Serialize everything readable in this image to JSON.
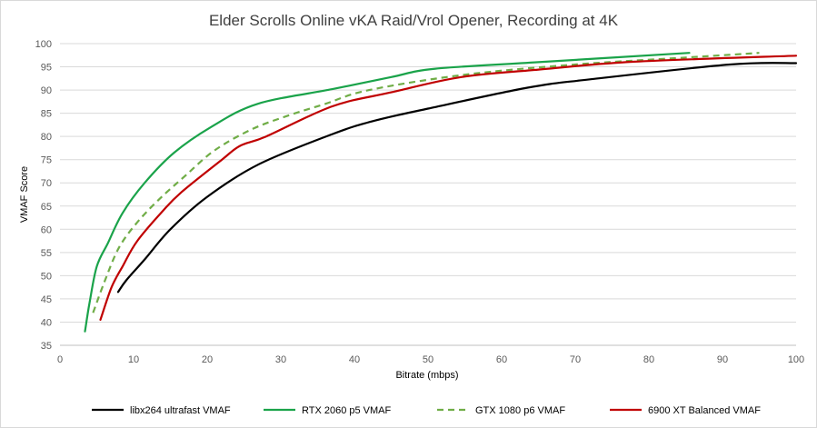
{
  "chart_data": {
    "type": "line",
    "title": "Elder Scrolls Online vKA Raid/Vrol Opener, Recording at 4K",
    "xlabel": "Bitrate (mbps)",
    "ylabel": "VMAF Score",
    "xlim": [
      0,
      100
    ],
    "ylim": [
      35,
      100
    ],
    "xticks": [
      "0",
      "10",
      "20",
      "30",
      "40",
      "50",
      "60",
      "70",
      "80",
      "90",
      "100"
    ],
    "yticks": [
      "35",
      "40",
      "45",
      "50",
      "55",
      "60",
      "65",
      "70",
      "75",
      "80",
      "85",
      "90",
      "95",
      "100"
    ],
    "grid": "horizontal",
    "legend_position": "bottom",
    "series": [
      {
        "name": "libx264 ultrafast VMAF",
        "color": "#000000",
        "dash": "solid",
        "points": [
          [
            7.9,
            46.5
          ],
          [
            9,
            49
          ],
          [
            11.5,
            53.5
          ],
          [
            15,
            60
          ],
          [
            20,
            67
          ],
          [
            27,
            74
          ],
          [
            37,
            80.5
          ],
          [
            42.5,
            83.3
          ],
          [
            50,
            86
          ],
          [
            63.5,
            90.5
          ],
          [
            72,
            92.3
          ],
          [
            91,
            95.5
          ],
          [
            100,
            95.8
          ]
        ]
      },
      {
        "name": "RTX 2060 p5 VMAF",
        "color": "#1aa34a",
        "dash": "solid",
        "points": [
          [
            3.4,
            38
          ],
          [
            4,
            44
          ],
          [
            5,
            52
          ],
          [
            6.5,
            57
          ],
          [
            8.5,
            63.5
          ],
          [
            11.5,
            70
          ],
          [
            15.5,
            76.5
          ],
          [
            20.5,
            82
          ],
          [
            26.8,
            87
          ],
          [
            37,
            90.2
          ],
          [
            45,
            92.8
          ],
          [
            51,
            94.6
          ],
          [
            65,
            96
          ],
          [
            85.5,
            98
          ]
        ]
      },
      {
        "name": "GTX 1080 p6 VMAF",
        "color": "#70ad47",
        "dash": "dashed",
        "points": [
          [
            4.5,
            42
          ],
          [
            6,
            48.5
          ],
          [
            8,
            56
          ],
          [
            10.5,
            61.5
          ],
          [
            13.5,
            66.5
          ],
          [
            17,
            71.5
          ],
          [
            21,
            77
          ],
          [
            26,
            81.5
          ],
          [
            31,
            84.5
          ],
          [
            36,
            87
          ],
          [
            42,
            90
          ],
          [
            55,
            93.3
          ],
          [
            70,
            95.5
          ],
          [
            85,
            97
          ],
          [
            95,
            98
          ]
        ]
      },
      {
        "name": "6900 XT Balanced VMAF",
        "color": "#c00000",
        "dash": "solid",
        "points": [
          [
            5.5,
            40.5
          ],
          [
            7,
            47.5
          ],
          [
            8.5,
            52
          ],
          [
            10.5,
            57.5
          ],
          [
            14,
            64
          ],
          [
            16.5,
            68
          ],
          [
            22,
            75
          ],
          [
            24.5,
            78
          ],
          [
            28,
            80
          ],
          [
            37,
            86.5
          ],
          [
            45,
            89.5
          ],
          [
            54.5,
            92.8
          ],
          [
            65,
            94.4
          ],
          [
            78,
            96.1
          ],
          [
            100,
            97.4
          ]
        ]
      }
    ]
  }
}
